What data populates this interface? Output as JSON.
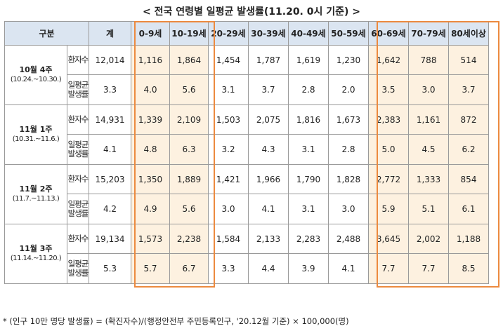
{
  "title": "< 전국 연령별 일평균 발생률(11.20. 0시 기준) >",
  "header": {
    "group_label": "구분",
    "total_label": "계",
    "age_groups": [
      "0-9세",
      "10-19세",
      "20-29세",
      "30-39세",
      "40-49세",
      "50-59세",
      "60-69세",
      "70-79세",
      "80세이상"
    ]
  },
  "row_labels": {
    "patients": "환자수",
    "rate": "일평균발생률"
  },
  "periods": [
    {
      "week": "10월 4주",
      "range": "(10.24.~10.30.)",
      "patients": {
        "total": "12,014",
        "values": [
          "1,116",
          "1,864",
          "1,454",
          "1,787",
          "1,619",
          "1,230",
          "1,642",
          "788",
          "514"
        ]
      },
      "rate": {
        "total": "3.3",
        "values": [
          "4.0",
          "5.6",
          "3.1",
          "3.7",
          "2.8",
          "2.0",
          "3.5",
          "3.0",
          "3.7"
        ]
      }
    },
    {
      "week": "11월 1주",
      "range": "(10.31.~11.6.)",
      "patients": {
        "total": "14,931",
        "values": [
          "1,339",
          "2,109",
          "1,503",
          "2,075",
          "1,816",
          "1,673",
          "2,383",
          "1,161",
          "872"
        ]
      },
      "rate": {
        "total": "4.1",
        "values": [
          "4.8",
          "6.3",
          "3.2",
          "4.3",
          "3.1",
          "2.8",
          "5.0",
          "4.5",
          "6.2"
        ]
      }
    },
    {
      "week": "11월 2주",
      "range": "(11.7.~11.13.)",
      "patients": {
        "total": "15,203",
        "values": [
          "1,350",
          "1,889",
          "1,421",
          "1,966",
          "1,790",
          "1,828",
          "2,772",
          "1,333",
          "854"
        ]
      },
      "rate": {
        "total": "4.2",
        "values": [
          "4.9",
          "5.6",
          "3.0",
          "4.1",
          "3.1",
          "3.0",
          "5.9",
          "5.1",
          "6.1"
        ]
      }
    },
    {
      "week": "11월 3주",
      "range": "(11.14.~11.20.)",
      "patients": {
        "total": "19,134",
        "values": [
          "1,573",
          "2,238",
          "1,584",
          "2,133",
          "2,283",
          "2,488",
          "3,645",
          "2,002",
          "1,188"
        ]
      },
      "rate": {
        "total": "5.3",
        "values": [
          "5.7",
          "6.7",
          "3.3",
          "4.4",
          "3.9",
          "4.1",
          "7.7",
          "7.7",
          "8.5"
        ]
      }
    }
  ],
  "footnote": "* (인구 10만 명당 발생률) = (확진자수)/(행정안전부 주민등록인구, '20.12월 기준) × 100,000(명)",
  "colors": {
    "header_bg": "#dbe5f1",
    "highlight_bg": "#fdf1e0",
    "highlight_border": "#ec8a3f",
    "grid": "#9a9a9a"
  }
}
